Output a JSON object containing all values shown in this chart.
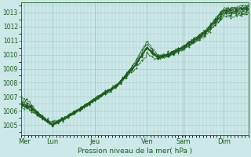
{
  "title": "Pression niveau de la mer( hPa )",
  "ylabel_ticks": [
    1005,
    1006,
    1007,
    1008,
    1009,
    1010,
    1011,
    1012,
    1013
  ],
  "ylim": [
    1004.3,
    1013.7
  ],
  "xlim": [
    0,
    130
  ],
  "day_labels": [
    "Mer",
    "Lun",
    "Jeu",
    "Ven",
    "Sam",
    "Dim"
  ],
  "day_positions": [
    2,
    18,
    42,
    72,
    93,
    116
  ],
  "bg_color": "#cce8e8",
  "grid_color": "#aacccc",
  "line_color": "#1a5c1a",
  "marker_color": "#1a5c1a",
  "title_color": "#1a5c1a",
  "tick_color": "#1a5c1a"
}
